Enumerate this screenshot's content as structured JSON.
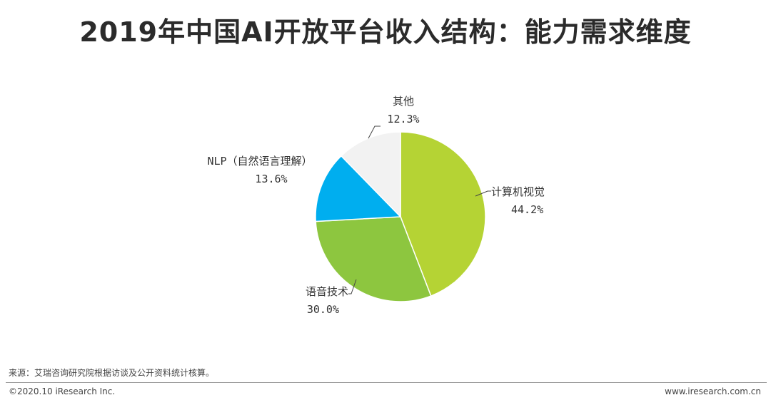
{
  "header": {
    "title": "2019年中国AI开放平台收入结构：能力需求维度"
  },
  "chart_data": {
    "type": "pie",
    "title": "2019年中国AI开放平台收入结构：能力需求维度",
    "slices": [
      {
        "label": "计算机视觉",
        "value": 44.2,
        "value_label": "44.2%",
        "color": "#b5d334"
      },
      {
        "label": "语音技术",
        "value": 30.0,
        "value_label": "30.0%",
        "color": "#8dc63f"
      },
      {
        "label": "NLP（自然语言理解）",
        "value": 13.6,
        "value_label": "13.6%",
        "color": "#00aeef"
      },
      {
        "label": "其他",
        "value": 12.3,
        "value_label": "12.3%",
        "color": "#f2f2f2"
      }
    ]
  },
  "footer": {
    "source": "来源：艾瑞咨询研究院根据访谈及公开资料统计核算。",
    "copyright": "©2020.10 iResearch Inc.",
    "website": "www.iresearch.com.cn"
  }
}
